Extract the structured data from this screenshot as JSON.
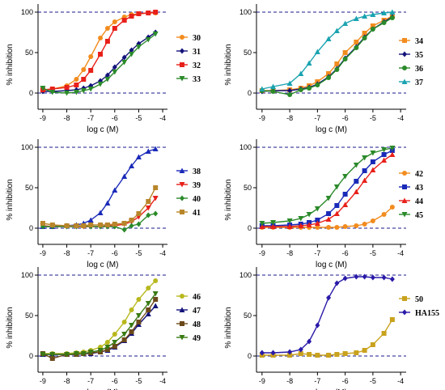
{
  "chart_data": [
    {
      "type": "line",
      "title": "",
      "xlabel": "log c (M)",
      "ylabel": "% inhibition",
      "xlim": [
        -9.2,
        -3.8
      ],
      "ylim": [
        -20,
        110
      ],
      "x_ticks": [
        "-9",
        "-8",
        "-7",
        "-6",
        "-5",
        "-4"
      ],
      "y_ticks": [
        "0",
        "50",
        "100"
      ],
      "reference_lines": [
        0,
        100
      ],
      "legend_position": "right",
      "series": [
        {
          "name": "30",
          "color": "#f28c1e",
          "marker": "circle",
          "x": [
            -9,
            -8.6,
            -8,
            -7.6,
            -7.3,
            -7,
            -6.6,
            -6.3,
            -6,
            -5.6,
            -5.3,
            -5,
            -4.6,
            -4.3
          ],
          "y": [
            3,
            5,
            9,
            17,
            29,
            45,
            68,
            80,
            88,
            94,
            97,
            98,
            99,
            99
          ]
        },
        {
          "name": "31",
          "color": "#13137a",
          "marker": "diamond",
          "x": [
            -9,
            -8.6,
            -8,
            -7.6,
            -7.3,
            -7,
            -6.6,
            -6.3,
            -6,
            -5.6,
            -5.3,
            -5,
            -4.6,
            -4.3
          ],
          "y": [
            2,
            2,
            3,
            4,
            6,
            9,
            15,
            22,
            32,
            44,
            53,
            61,
            69,
            75
          ]
        },
        {
          "name": "32",
          "color": "#e8201a",
          "marker": "square",
          "x": [
            -9,
            -8.6,
            -8,
            -7.6,
            -7.3,
            -7,
            -6.6,
            -6.3,
            -6,
            -5.6,
            -5.3,
            -5,
            -4.6,
            -4.3
          ],
          "y": [
            4,
            5,
            7,
            10,
            17,
            28,
            48,
            64,
            80,
            90,
            95,
            98,
            99,
            100
          ]
        },
        {
          "name": "33",
          "color": "#2a8a2a",
          "marker": "triangle-down",
          "x": [
            -9,
            -8.6,
            -8,
            -7.6,
            -7.3,
            -7,
            -6.6,
            -6.3,
            -6,
            -5.6,
            -5.3,
            -5,
            -4.6,
            -4.3
          ],
          "y": [
            6,
            1,
            0,
            1,
            3,
            5,
            11,
            17,
            26,
            38,
            48,
            57,
            66,
            73
          ]
        }
      ]
    },
    {
      "type": "line",
      "title": "",
      "xlabel": "log c (M)",
      "ylabel": "% inhibition",
      "xlim": [
        -9.2,
        -3.8
      ],
      "ylim": [
        -20,
        110
      ],
      "x_ticks": [
        "-9",
        "-8",
        "-7",
        "-6",
        "-5",
        "-4"
      ],
      "y_ticks": [
        "0",
        "50",
        "100"
      ],
      "reference_lines": [
        0,
        100
      ],
      "legend_position": "right",
      "series": [
        {
          "name": "34",
          "color": "#f28c1e",
          "marker": "square",
          "x": [
            -9,
            -8.6,
            -8,
            -7.6,
            -7.3,
            -7,
            -6.6,
            -6.3,
            -6,
            -5.6,
            -5.3,
            -5,
            -4.6,
            -4.3
          ],
          "y": [
            3,
            3,
            4,
            6,
            9,
            14,
            24,
            36,
            50,
            63,
            74,
            83,
            90,
            95
          ]
        },
        {
          "name": "35",
          "color": "#13137a",
          "marker": "diamond",
          "x": [
            -9,
            -8.6,
            -8,
            -7.6,
            -7.3,
            -7,
            -6.6,
            -6.3,
            -6,
            -5.6,
            -5.3,
            -5,
            -4.6,
            -4.3
          ],
          "y": [
            2,
            3,
            3,
            5,
            7,
            11,
            20,
            30,
            43,
            57,
            69,
            79,
            88,
            94
          ]
        },
        {
          "name": "36",
          "color": "#2a8a2a",
          "marker": "circle",
          "x": [
            -9,
            -8.6,
            -8,
            -7.6,
            -7.3,
            -7,
            -6.6,
            -6.3,
            -6,
            -5.6,
            -5.3,
            -5,
            -4.6,
            -4.3
          ],
          "y": [
            3,
            2,
            -2,
            4,
            6,
            10,
            19,
            29,
            42,
            56,
            68,
            79,
            87,
            93
          ]
        },
        {
          "name": "37",
          "color": "#1aa3b0",
          "marker": "triangle-up",
          "x": [
            -9,
            -8.6,
            -8,
            -7.6,
            -7.3,
            -7,
            -6.6,
            -6.3,
            -6,
            -5.6,
            -5.3,
            -5,
            -4.6,
            -4.3
          ],
          "y": [
            5,
            8,
            12,
            24,
            37,
            51,
            67,
            77,
            86,
            92,
            95,
            97,
            99,
            100
          ]
        }
      ]
    },
    {
      "type": "line",
      "title": "",
      "xlabel": "log c (M)",
      "ylabel": "% inhibition",
      "xlim": [
        -9.2,
        -3.8
      ],
      "ylim": [
        -20,
        110
      ],
      "x_ticks": [
        "-9",
        "-8",
        "-7",
        "-6",
        "-5",
        "-4"
      ],
      "y_ticks": [
        "0",
        "50",
        "100"
      ],
      "reference_lines": [
        0,
        100
      ],
      "legend_position": "right",
      "series": [
        {
          "name": "38",
          "color": "#1a2ab8",
          "marker": "triangle-up",
          "x": [
            -9,
            -8.6,
            -8,
            -7.6,
            -7.3,
            -7,
            -6.6,
            -6.3,
            -6,
            -5.6,
            -5.3,
            -5,
            -4.6,
            -4.3
          ],
          "y": [
            2,
            2,
            3,
            4,
            6,
            10,
            19,
            31,
            47,
            64,
            77,
            88,
            95,
            98
          ]
        },
        {
          "name": "39",
          "color": "#e8201a",
          "marker": "triangle-down",
          "x": [
            -9,
            -8.6,
            -8,
            -7.6,
            -7.3,
            -7,
            -6.6,
            -6.3,
            -6,
            -5.6,
            -5.3,
            -5,
            -4.6,
            -4.3
          ],
          "y": [
            3,
            2,
            2,
            2,
            2,
            2,
            2,
            3,
            3,
            5,
            8,
            14,
            25,
            37
          ]
        },
        {
          "name": "40",
          "color": "#2a8a2a",
          "marker": "diamond",
          "x": [
            -9,
            -8.6,
            -8,
            -7.6,
            -7.3,
            -7,
            -6.6,
            -6.3,
            -6,
            -5.6,
            -5.3,
            -5,
            -4.6,
            -4.3
          ],
          "y": [
            2,
            2,
            2,
            2,
            3,
            2,
            2,
            2,
            2,
            -2,
            3,
            5,
            16,
            18
          ]
        },
        {
          "name": "41",
          "color": "#b8862a",
          "marker": "square",
          "x": [
            -9,
            -8.6,
            -8,
            -7.6,
            -7.3,
            -7,
            -6.6,
            -6.3,
            -6,
            -5.6,
            -5.3,
            -5,
            -4.6,
            -4.3
          ],
          "y": [
            6,
            4,
            3,
            3,
            3,
            4,
            4,
            4,
            5,
            6,
            10,
            18,
            33,
            50
          ]
        }
      ]
    },
    {
      "type": "line",
      "title": "",
      "xlabel": "log c (M)",
      "ylabel": "% inhibition",
      "xlim": [
        -9.2,
        -3.8
      ],
      "ylim": [
        -20,
        110
      ],
      "x_ticks": [
        "-9",
        "-8",
        "-7",
        "-6",
        "-5",
        "-4"
      ],
      "y_ticks": [
        "0",
        "50",
        "100"
      ],
      "reference_lines": [
        0,
        100
      ],
      "legend_position": "right",
      "series": [
        {
          "name": "42",
          "color": "#f28c1e",
          "marker": "circle",
          "x": [
            -9,
            -8.6,
            -8,
            -7.6,
            -7.3,
            -7,
            -6.6,
            -6.3,
            -6,
            -5.6,
            -5.3,
            -5,
            -4.6,
            -4.3
          ],
          "y": [
            1,
            1,
            1,
            1,
            1,
            1,
            1,
            1,
            2,
            3,
            5,
            9,
            17,
            26
          ]
        },
        {
          "name": "43",
          "color": "#1a2ab8",
          "marker": "square",
          "x": [
            -9,
            -8.6,
            -8,
            -7.6,
            -7.3,
            -7,
            -6.6,
            -6.3,
            -6,
            -5.6,
            -5.3,
            -5,
            -4.6,
            -4.3
          ],
          "y": [
            3,
            3,
            4,
            5,
            7,
            10,
            18,
            28,
            42,
            58,
            71,
            82,
            91,
            96
          ]
        },
        {
          "name": "44",
          "color": "#e8201a",
          "marker": "triangle-up",
          "x": [
            -9,
            -8.6,
            -8,
            -7.6,
            -7.3,
            -7,
            -6.6,
            -6.3,
            -6,
            -5.6,
            -5.3,
            -5,
            -4.6,
            -4.3
          ],
          "y": [
            2,
            2,
            2,
            3,
            4,
            6,
            11,
            18,
            29,
            45,
            59,
            72,
            84,
            91
          ]
        },
        {
          "name": "45",
          "color": "#2a8a2a",
          "marker": "triangle-down",
          "x": [
            -9,
            -8.6,
            -8,
            -7.6,
            -7.3,
            -7,
            -6.6,
            -6.3,
            -6,
            -5.6,
            -5.3,
            -5,
            -4.6,
            -4.3
          ],
          "y": [
            6,
            7,
            9,
            12,
            17,
            24,
            37,
            51,
            64,
            78,
            87,
            93,
            97,
            99
          ]
        }
      ]
    },
    {
      "type": "line",
      "title": "",
      "xlabel": "log c (M)",
      "ylabel": "% inhibition",
      "xlim": [
        -9.2,
        -3.8
      ],
      "ylim": [
        -20,
        110
      ],
      "x_ticks": [
        "-9",
        "-8",
        "-7",
        "-6",
        "-5",
        "-4"
      ],
      "y_ticks": [
        "0",
        "50",
        "100"
      ],
      "reference_lines": [
        0,
        100
      ],
      "legend_position": "right",
      "series": [
        {
          "name": "46",
          "color": "#b8b81e",
          "marker": "circle",
          "x": [
            -9,
            -8.6,
            -8,
            -7.6,
            -7.3,
            -7,
            -6.6,
            -6.3,
            -6,
            -5.6,
            -5.3,
            -5,
            -4.6,
            -4.3
          ],
          "y": [
            3,
            3,
            3,
            4,
            5,
            7,
            11,
            17,
            27,
            42,
            57,
            70,
            84,
            93
          ]
        },
        {
          "name": "47",
          "color": "#13137a",
          "marker": "triangle-up",
          "x": [
            -9,
            -8.6,
            -8,
            -7.6,
            -7.3,
            -7,
            -6.6,
            -6.3,
            -6,
            -5.6,
            -5.3,
            -5,
            -4.6,
            -4.3
          ],
          "y": [
            2,
            2,
            2,
            2,
            3,
            3,
            5,
            7,
            11,
            19,
            28,
            39,
            52,
            62
          ]
        },
        {
          "name": "48",
          "color": "#6b4a1a",
          "marker": "square",
          "x": [
            -9,
            -8.6,
            -8,
            -7.6,
            -7.3,
            -7,
            -6.6,
            -6.3,
            -6,
            -5.6,
            -5.3,
            -5,
            -4.6,
            -4.3
          ],
          "y": [
            3,
            -3,
            2,
            2,
            3,
            4,
            5,
            8,
            12,
            20,
            30,
            42,
            57,
            70
          ]
        },
        {
          "name": "49",
          "color": "#3a7a14",
          "marker": "triangle-down",
          "x": [
            -9,
            -8.6,
            -8,
            -7.6,
            -7.3,
            -7,
            -6.6,
            -6.3,
            -6,
            -5.6,
            -5.3,
            -5,
            -4.6,
            -4.3
          ],
          "y": [
            2,
            2,
            2,
            3,
            3,
            5,
            7,
            11,
            17,
            27,
            38,
            50,
            65,
            77
          ]
        }
      ]
    },
    {
      "type": "line",
      "title": "",
      "xlabel": "log c (M)",
      "ylabel": "% inhibition",
      "xlim": [
        -9.2,
        -3.8
      ],
      "ylim": [
        -20,
        110
      ],
      "x_ticks": [
        "-9",
        "-8",
        "-7",
        "-6",
        "-5",
        "-4"
      ],
      "y_ticks": [
        "0",
        "50",
        "100"
      ],
      "reference_lines": [
        0,
        100
      ],
      "legend_position": "right",
      "series": [
        {
          "name": "50",
          "color": "#c9a21e",
          "marker": "square",
          "x": [
            -9,
            -8.6,
            -8,
            -7.6,
            -7.3,
            -7,
            -6.6,
            -6.3,
            -6,
            -5.6,
            -5.3,
            -5,
            -4.6,
            -4.3
          ],
          "y": [
            1,
            1,
            1,
            3,
            2,
            1,
            1,
            2,
            3,
            4,
            7,
            14,
            28,
            45
          ]
        },
        {
          "name": "HA155",
          "color": "#2a1aa8",
          "marker": "diamond",
          "x": [
            -9,
            -8.6,
            -8,
            -7.6,
            -7.3,
            -7,
            -6.6,
            -6.3,
            -6,
            -5.6,
            -5.3,
            -5,
            -4.6,
            -4.3
          ],
          "y": [
            4,
            4,
            5,
            8,
            18,
            38,
            72,
            90,
            96,
            98,
            98,
            97,
            97,
            95
          ]
        }
      ]
    }
  ]
}
